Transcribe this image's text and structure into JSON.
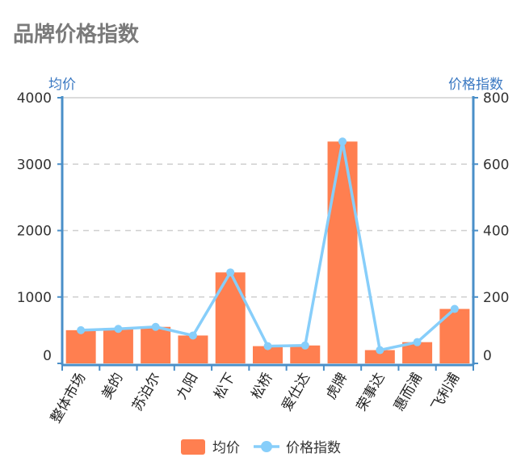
{
  "page": {
    "title": "品牌价格指数"
  },
  "chart_data": {
    "type": "bar",
    "title": "品牌价格指数",
    "categories": [
      "整体市场",
      "美的",
      "苏泊尔",
      "九阳",
      "松下",
      "松桥",
      "爱仕达",
      "虎牌",
      "荣事达",
      "惠而浦",
      "飞利浦"
    ],
    "left_axis": {
      "title": "均价",
      "ylim": [
        0,
        4000
      ],
      "ticks": [
        0,
        1000,
        2000,
        3000,
        4000
      ]
    },
    "right_axis": {
      "title": "价格指数",
      "ylim": [
        0,
        800
      ],
      "ticks": [
        0,
        200,
        400,
        600,
        800
      ]
    },
    "series": [
      {
        "name": "均价",
        "type": "bar",
        "axis": "left",
        "color": "#FF7F50",
        "values": [
          500,
          520,
          550,
          420,
          1370,
          260,
          270,
          3340,
          200,
          320,
          820
        ]
      },
      {
        "name": "价格指数",
        "type": "line",
        "axis": "right",
        "color": "#87CEFA",
        "values": [
          100,
          104,
          110,
          84,
          274,
          52,
          54,
          668,
          40,
          64,
          164
        ]
      }
    ],
    "grid": true,
    "legend": "bottom-center"
  }
}
